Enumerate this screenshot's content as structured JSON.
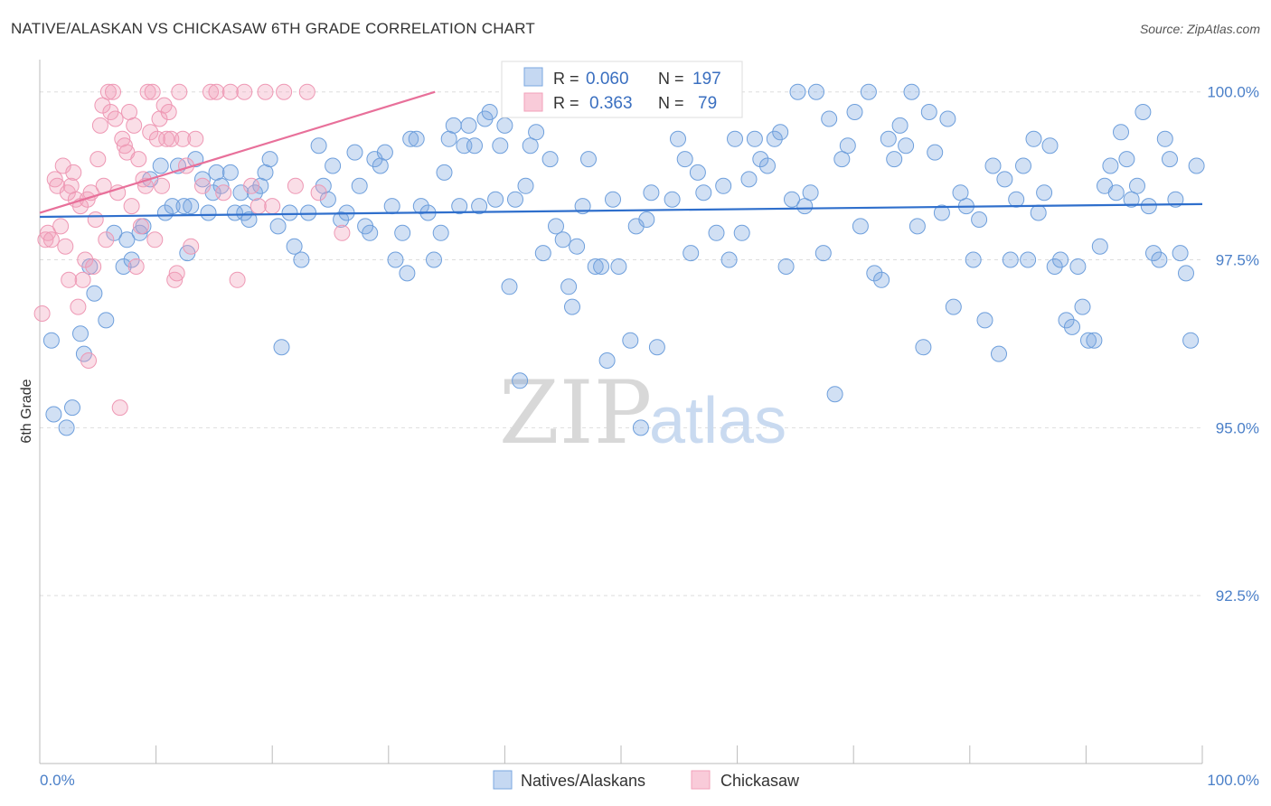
{
  "title": "NATIVE/ALASKAN VS CHICKASAW 6TH GRADE CORRELATION CHART",
  "source": "Source: ZipAtlas.com",
  "watermark": {
    "zip": "ZIP",
    "atlas": "atlas"
  },
  "colors": {
    "blue": "#7aa7e0",
    "blue_line": "#2f6fcc",
    "pink": "#f2a0ba",
    "pink_line": "#e8709a"
  },
  "legend": {
    "r_label": "R =",
    "n_label": "N =",
    "rows": [
      {
        "r": "0.060",
        "n": "197"
      },
      {
        "r": "0.363",
        "n": "79"
      }
    ]
  },
  "chart_data": {
    "type": "scatter",
    "xlabel": "",
    "ylabel": "6th Grade",
    "xlim": [
      0,
      100
    ],
    "ylim": [
      90.0,
      100.4
    ],
    "x_tick_labels": [
      "0.0%",
      "100.0%"
    ],
    "y_ticks": [
      {
        "value": 100.0,
        "label": "100.0%"
      },
      {
        "value": 97.5,
        "label": "97.5%"
      },
      {
        "value": 95.0,
        "label": "95.0%"
      },
      {
        "value": 92.5,
        "label": "92.5%"
      }
    ],
    "grid": true,
    "series": [
      {
        "name": "Natives/Alaskans",
        "trend": {
          "x0": 0,
          "y0": 98.14,
          "x1": 100,
          "y1": 98.33
        },
        "points": [
          [
            1,
            96.3
          ],
          [
            1.2,
            95.2
          ],
          [
            2.3,
            95.0
          ],
          [
            2.8,
            95.3
          ],
          [
            3.5,
            96.4
          ],
          [
            3.8,
            96.1
          ],
          [
            4.3,
            97.4
          ],
          [
            4.7,
            97.0
          ],
          [
            5.7,
            96.6
          ],
          [
            6.4,
            97.9
          ],
          [
            7.2,
            97.4
          ],
          [
            7.5,
            97.8
          ],
          [
            7.9,
            97.5
          ],
          [
            8.6,
            97.9
          ],
          [
            8.9,
            98.0
          ],
          [
            9.5,
            98.7
          ],
          [
            10.4,
            98.9
          ],
          [
            10.8,
            98.2
          ],
          [
            11.4,
            98.3
          ],
          [
            11.9,
            98.9
          ],
          [
            12.4,
            98.3
          ],
          [
            12.7,
            97.6
          ],
          [
            13.0,
            98.3
          ],
          [
            13.4,
            99.0
          ],
          [
            14.0,
            98.7
          ],
          [
            14.5,
            98.2
          ],
          [
            14.9,
            98.5
          ],
          [
            15.2,
            98.8
          ],
          [
            15.6,
            98.6
          ],
          [
            16.4,
            98.8
          ],
          [
            16.8,
            98.2
          ],
          [
            17.3,
            98.5
          ],
          [
            17.6,
            98.2
          ],
          [
            18.0,
            98.1
          ],
          [
            18.5,
            98.5
          ],
          [
            19.0,
            98.6
          ],
          [
            19.4,
            98.8
          ],
          [
            19.8,
            99.0
          ],
          [
            20.5,
            98.0
          ],
          [
            20.8,
            96.2
          ],
          [
            21.5,
            98.2
          ],
          [
            21.9,
            97.7
          ],
          [
            22.5,
            97.5
          ],
          [
            23.1,
            98.2
          ],
          [
            24.0,
            99.2
          ],
          [
            24.4,
            98.6
          ],
          [
            24.8,
            98.4
          ],
          [
            25.2,
            98.9
          ],
          [
            25.9,
            98.1
          ],
          [
            26.4,
            98.2
          ],
          [
            27.1,
            99.1
          ],
          [
            27.5,
            98.6
          ],
          [
            28.0,
            98.0
          ],
          [
            28.4,
            97.9
          ],
          [
            28.8,
            99.0
          ],
          [
            29.3,
            98.9
          ],
          [
            29.7,
            99.1
          ],
          [
            30.3,
            98.3
          ],
          [
            30.6,
            97.5
          ],
          [
            31.2,
            97.9
          ],
          [
            31.6,
            97.3
          ],
          [
            31.9,
            99.3
          ],
          [
            32.4,
            99.3
          ],
          [
            32.8,
            98.3
          ],
          [
            33.4,
            98.2
          ],
          [
            33.9,
            97.5
          ],
          [
            34.5,
            97.9
          ],
          [
            34.8,
            98.8
          ],
          [
            35.2,
            99.3
          ],
          [
            35.6,
            99.5
          ],
          [
            36.1,
            98.3
          ],
          [
            36.5,
            99.2
          ],
          [
            36.9,
            99.5
          ],
          [
            37.4,
            99.2
          ],
          [
            37.8,
            98.3
          ],
          [
            38.3,
            99.6
          ],
          [
            38.7,
            99.7
          ],
          [
            39.2,
            98.4
          ],
          [
            39.6,
            99.2
          ],
          [
            40.0,
            99.5
          ],
          [
            40.4,
            97.1
          ],
          [
            40.9,
            98.4
          ],
          [
            41.3,
            95.7
          ],
          [
            41.8,
            98.6
          ],
          [
            42.2,
            99.2
          ],
          [
            42.7,
            99.4
          ],
          [
            43.3,
            97.6
          ],
          [
            43.9,
            99.0
          ],
          [
            44.4,
            98.0
          ],
          [
            45.0,
            97.8
          ],
          [
            45.5,
            97.1
          ],
          [
            45.8,
            96.8
          ],
          [
            46.2,
            97.7
          ],
          [
            46.7,
            98.3
          ],
          [
            47.2,
            99.0
          ],
          [
            47.8,
            97.4
          ],
          [
            48.3,
            97.4
          ],
          [
            48.8,
            96.0
          ],
          [
            49.3,
            98.4
          ],
          [
            49.8,
            97.4
          ],
          [
            50.3,
            100.0
          ],
          [
            50.8,
            96.3
          ],
          [
            51.3,
            98.0
          ],
          [
            51.7,
            95.0
          ],
          [
            52.2,
            98.1
          ],
          [
            52.6,
            98.5
          ],
          [
            53.1,
            96.2
          ],
          [
            53.8,
            100.0
          ],
          [
            54.4,
            98.4
          ],
          [
            54.9,
            99.3
          ],
          [
            55.5,
            99.0
          ],
          [
            56.0,
            97.6
          ],
          [
            56.6,
            98.8
          ],
          [
            57.1,
            98.5
          ],
          [
            57.6,
            100.0
          ],
          [
            58.2,
            97.9
          ],
          [
            58.8,
            98.6
          ],
          [
            59.3,
            97.5
          ],
          [
            59.8,
            99.3
          ],
          [
            60.4,
            97.9
          ],
          [
            61.0,
            98.7
          ],
          [
            61.5,
            99.3
          ],
          [
            62.0,
            99.0
          ],
          [
            62.6,
            98.9
          ],
          [
            63.2,
            99.3
          ],
          [
            63.7,
            99.4
          ],
          [
            64.2,
            97.4
          ],
          [
            64.7,
            98.4
          ],
          [
            65.2,
            100.0
          ],
          [
            65.8,
            98.3
          ],
          [
            66.3,
            98.5
          ],
          [
            66.8,
            100.0
          ],
          [
            67.4,
            97.6
          ],
          [
            67.9,
            99.6
          ],
          [
            68.4,
            95.5
          ],
          [
            69.0,
            99.0
          ],
          [
            69.5,
            99.2
          ],
          [
            70.1,
            99.7
          ],
          [
            70.6,
            98.0
          ],
          [
            71.3,
            100.0
          ],
          [
            71.8,
            97.3
          ],
          [
            72.4,
            97.2
          ],
          [
            73.0,
            99.3
          ],
          [
            73.5,
            99.0
          ],
          [
            74.0,
            99.5
          ],
          [
            74.5,
            99.2
          ],
          [
            75.0,
            100.0
          ],
          [
            75.5,
            98.0
          ],
          [
            76.0,
            96.2
          ],
          [
            76.5,
            99.7
          ],
          [
            77.0,
            99.1
          ],
          [
            77.6,
            98.2
          ],
          [
            78.1,
            99.6
          ],
          [
            78.6,
            96.8
          ],
          [
            79.2,
            98.5
          ],
          [
            79.7,
            98.3
          ],
          [
            80.3,
            97.5
          ],
          [
            80.8,
            98.1
          ],
          [
            81.3,
            96.6
          ],
          [
            82.0,
            98.9
          ],
          [
            82.5,
            96.1
          ],
          [
            83.0,
            98.7
          ],
          [
            83.5,
            97.5
          ],
          [
            84.0,
            98.4
          ],
          [
            84.6,
            98.9
          ],
          [
            85.0,
            97.5
          ],
          [
            85.5,
            99.3
          ],
          [
            85.9,
            98.2
          ],
          [
            86.4,
            98.5
          ],
          [
            86.9,
            99.2
          ],
          [
            87.3,
            97.4
          ],
          [
            87.8,
            97.5
          ],
          [
            88.3,
            96.6
          ],
          [
            88.8,
            96.5
          ],
          [
            89.3,
            97.4
          ],
          [
            89.7,
            96.8
          ],
          [
            90.2,
            96.3
          ],
          [
            90.7,
            96.3
          ],
          [
            91.2,
            97.7
          ],
          [
            91.6,
            98.6
          ],
          [
            92.1,
            98.9
          ],
          [
            92.6,
            98.5
          ],
          [
            93.0,
            99.4
          ],
          [
            93.5,
            99.0
          ],
          [
            93.9,
            98.4
          ],
          [
            94.4,
            98.6
          ],
          [
            94.9,
            99.7
          ],
          [
            95.4,
            98.3
          ],
          [
            95.8,
            97.6
          ],
          [
            96.3,
            97.5
          ],
          [
            96.8,
            99.3
          ],
          [
            97.2,
            99.0
          ],
          [
            97.7,
            98.4
          ],
          [
            98.1,
            97.6
          ],
          [
            98.6,
            97.3
          ],
          [
            99.0,
            96.3
          ],
          [
            99.5,
            98.9
          ]
        ]
      },
      {
        "name": "Chickasaw",
        "trend": {
          "x0": 0,
          "y0": 98.2,
          "x1": 34,
          "y1": 100.0
        },
        "points": [
          [
            0.2,
            96.7
          ],
          [
            0.5,
            97.8
          ],
          [
            0.7,
            97.9
          ],
          [
            1.0,
            97.8
          ],
          [
            1.3,
            98.7
          ],
          [
            1.5,
            98.6
          ],
          [
            1.8,
            98.0
          ],
          [
            2.0,
            98.9
          ],
          [
            2.2,
            97.7
          ],
          [
            2.4,
            98.5
          ],
          [
            2.5,
            97.2
          ],
          [
            2.7,
            98.6
          ],
          [
            2.9,
            98.8
          ],
          [
            3.1,
            98.4
          ],
          [
            3.3,
            96.8
          ],
          [
            3.5,
            98.3
          ],
          [
            3.7,
            97.2
          ],
          [
            3.9,
            97.5
          ],
          [
            4.1,
            98.4
          ],
          [
            4.2,
            96.0
          ],
          [
            4.4,
            98.5
          ],
          [
            4.6,
            97.4
          ],
          [
            4.8,
            98.1
          ],
          [
            5.0,
            99.0
          ],
          [
            5.2,
            99.5
          ],
          [
            5.4,
            99.8
          ],
          [
            5.5,
            98.6
          ],
          [
            5.7,
            97.8
          ],
          [
            5.9,
            100.0
          ],
          [
            6.1,
            99.7
          ],
          [
            6.3,
            100.0
          ],
          [
            6.5,
            99.6
          ],
          [
            6.7,
            98.5
          ],
          [
            6.9,
            95.3
          ],
          [
            7.1,
            99.3
          ],
          [
            7.3,
            99.2
          ],
          [
            7.5,
            99.1
          ],
          [
            7.7,
            99.7
          ],
          [
            7.9,
            98.3
          ],
          [
            8.1,
            99.5
          ],
          [
            8.3,
            97.4
          ],
          [
            8.5,
            99.0
          ],
          [
            8.7,
            98.0
          ],
          [
            8.9,
            98.7
          ],
          [
            9.1,
            98.6
          ],
          [
            9.3,
            100.0
          ],
          [
            9.5,
            99.4
          ],
          [
            9.7,
            100.0
          ],
          [
            9.9,
            97.8
          ],
          [
            10.1,
            99.3
          ],
          [
            10.3,
            99.6
          ],
          [
            10.5,
            98.6
          ],
          [
            10.7,
            99.8
          ],
          [
            10.9,
            99.3
          ],
          [
            11.1,
            99.7
          ],
          [
            11.3,
            99.3
          ],
          [
            11.6,
            97.2
          ],
          [
            11.8,
            97.3
          ],
          [
            12.0,
            100.0
          ],
          [
            12.3,
            99.3
          ],
          [
            12.6,
            98.9
          ],
          [
            13.0,
            97.7
          ],
          [
            13.4,
            99.3
          ],
          [
            14.0,
            98.6
          ],
          [
            14.7,
            100.0
          ],
          [
            15.2,
            100.0
          ],
          [
            15.8,
            98.5
          ],
          [
            16.4,
            100.0
          ],
          [
            17.0,
            97.2
          ],
          [
            17.6,
            100.0
          ],
          [
            18.2,
            98.6
          ],
          [
            18.8,
            98.3
          ],
          [
            19.4,
            100.0
          ],
          [
            20.0,
            98.3
          ],
          [
            21.0,
            100.0
          ],
          [
            22.0,
            98.6
          ],
          [
            23.0,
            100.0
          ],
          [
            24.0,
            98.5
          ],
          [
            26.0,
            97.9
          ]
        ]
      }
    ]
  },
  "bottom_legend": [
    "Natives/Alaskans",
    "Chickasaw"
  ]
}
